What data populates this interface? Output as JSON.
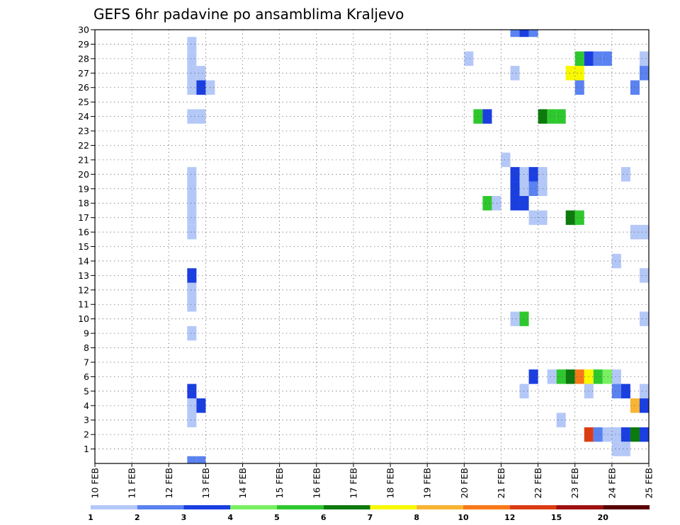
{
  "chart_data": {
    "type": "heatmap",
    "title": "GEFS 6hr padavine po ansamblima Kraljevo",
    "xlabel": "",
    "ylabel": "",
    "x_ticks": [
      "10 FEB",
      "11 FEB",
      "12 FEB",
      "13 FEB",
      "14 FEB",
      "15 FEB",
      "16 FEB",
      "17 FEB",
      "18 FEB",
      "19 FEB",
      "20 FEB",
      "21 FEB",
      "22 FEB",
      "23 FEB",
      "24 FEB",
      "25 FEB"
    ],
    "x_range_days": [
      10,
      25
    ],
    "x_step_hours": 6,
    "y_ticks": [
      "1",
      "2",
      "3",
      "4",
      "5",
      "6",
      "7",
      "8",
      "9",
      "10",
      "11",
      "12",
      "13",
      "14",
      "15",
      "16",
      "17",
      "18",
      "19",
      "20",
      "21",
      "22",
      "23",
      "24",
      "25",
      "26",
      "27",
      "28",
      "29",
      "30"
    ],
    "y_range": [
      0,
      30
    ],
    "grid": "dotted",
    "legend_position": "bottom",
    "legend": {
      "labels": [
        "1",
        "2",
        "3",
        "4",
        "5",
        "6",
        "7",
        "8",
        "10",
        "12",
        "15",
        "20"
      ],
      "colors": [
        "#b4c8f8",
        "#5a82f0",
        "#1a3ee0",
        "#78f060",
        "#2ec82e",
        "#0c7a0c",
        "#f8f800",
        "#f8b432",
        "#f87818",
        "#dc3c14",
        "#a01010",
        "#5a0000"
      ]
    },
    "cells": [
      {
        "day": 12.5,
        "m": 0,
        "v": 2
      },
      {
        "day": 12.75,
        "m": 0,
        "v": 2
      },
      {
        "day": 12.5,
        "m": 3,
        "v": 1
      },
      {
        "day": 12.5,
        "m": 4,
        "v": 1
      },
      {
        "day": 12.75,
        "m": 4,
        "v": 3
      },
      {
        "day": 12.5,
        "m": 5,
        "v": 3
      },
      {
        "day": 12.5,
        "m": 9,
        "v": 1
      },
      {
        "day": 12.5,
        "m": 11,
        "v": 1
      },
      {
        "day": 12.5,
        "m": 12,
        "v": 1
      },
      {
        "day": 12.5,
        "m": 13,
        "v": 3
      },
      {
        "day": 12.5,
        "m": 16,
        "v": 1
      },
      {
        "day": 12.5,
        "m": 17,
        "v": 1
      },
      {
        "day": 12.5,
        "m": 18,
        "v": 1
      },
      {
        "day": 12.5,
        "m": 19,
        "v": 1
      },
      {
        "day": 12.5,
        "m": 20,
        "v": 1
      },
      {
        "day": 12.5,
        "m": 24,
        "v": 1
      },
      {
        "day": 12.75,
        "m": 24,
        "v": 1
      },
      {
        "day": 12.5,
        "m": 26,
        "v": 1
      },
      {
        "day": 12.75,
        "m": 26,
        "v": 3
      },
      {
        "day": 13.0,
        "m": 26,
        "v": 1
      },
      {
        "day": 12.5,
        "m": 27,
        "v": 1
      },
      {
        "day": 12.75,
        "m": 27,
        "v": 1
      },
      {
        "day": 12.5,
        "m": 28,
        "v": 1
      },
      {
        "day": 12.5,
        "m": 29,
        "v": 1
      },
      {
        "day": 20.0,
        "m": 28,
        "v": 1
      },
      {
        "day": 20.25,
        "m": 24,
        "v": 5
      },
      {
        "day": 20.5,
        "m": 24,
        "v": 3
      },
      {
        "day": 20.5,
        "m": 18,
        "v": 5
      },
      {
        "day": 20.75,
        "m": 18,
        "v": 1
      },
      {
        "day": 21.0,
        "m": 21,
        "v": 1
      },
      {
        "day": 21.25,
        "m": 10,
        "v": 1
      },
      {
        "day": 21.5,
        "m": 10,
        "v": 5
      },
      {
        "day": 21.25,
        "m": 27,
        "v": 1
      },
      {
        "day": 21.25,
        "m": 30,
        "v": 2
      },
      {
        "day": 21.5,
        "m": 30,
        "v": 3
      },
      {
        "day": 21.75,
        "m": 30,
        "v": 2
      },
      {
        "day": 21.25,
        "m": 18,
        "v": 3
      },
      {
        "day": 21.5,
        "m": 18,
        "v": 3
      },
      {
        "day": 21.25,
        "m": 19,
        "v": 3
      },
      {
        "day": 21.5,
        "m": 19,
        "v": 1
      },
      {
        "day": 21.75,
        "m": 19,
        "v": 2
      },
      {
        "day": 22.0,
        "m": 19,
        "v": 1
      },
      {
        "day": 21.25,
        "m": 20,
        "v": 3
      },
      {
        "day": 21.5,
        "m": 20,
        "v": 1
      },
      {
        "day": 21.75,
        "m": 20,
        "v": 3
      },
      {
        "day": 22.0,
        "m": 20,
        "v": 1
      },
      {
        "day": 21.75,
        "m": 17,
        "v": 1
      },
      {
        "day": 22.0,
        "m": 17,
        "v": 1
      },
      {
        "day": 21.5,
        "m": 5,
        "v": 1
      },
      {
        "day": 21.75,
        "m": 6,
        "v": 3
      },
      {
        "day": 22.0,
        "m": 24,
        "v": 6
      },
      {
        "day": 22.25,
        "m": 24,
        "v": 5
      },
      {
        "day": 22.5,
        "m": 24,
        "v": 5
      },
      {
        "day": 22.5,
        "m": 3,
        "v": 1
      },
      {
        "day": 22.25,
        "m": 6,
        "v": 1
      },
      {
        "day": 22.5,
        "m": 6,
        "v": 5
      },
      {
        "day": 22.75,
        "m": 6,
        "v": 6
      },
      {
        "day": 23.0,
        "m": 6,
        "v": 10
      },
      {
        "day": 23.25,
        "m": 6,
        "v": 7
      },
      {
        "day": 23.5,
        "m": 6,
        "v": 5
      },
      {
        "day": 23.75,
        "m": 6,
        "v": 4
      },
      {
        "day": 24.0,
        "m": 6,
        "v": 1
      },
      {
        "day": 22.75,
        "m": 17,
        "v": 6
      },
      {
        "day": 23.0,
        "m": 17,
        "v": 5
      },
      {
        "day": 22.75,
        "m": 27,
        "v": 7
      },
      {
        "day": 23.0,
        "m": 27,
        "v": 7
      },
      {
        "day": 23.0,
        "m": 26,
        "v": 2
      },
      {
        "day": 23.0,
        "m": 28,
        "v": 5
      },
      {
        "day": 23.25,
        "m": 28,
        "v": 3
      },
      {
        "day": 23.5,
        "m": 28,
        "v": 2
      },
      {
        "day": 23.75,
        "m": 28,
        "v": 2
      },
      {
        "day": 23.25,
        "m": 5,
        "v": 1
      },
      {
        "day": 23.25,
        "m": 2,
        "v": 12
      },
      {
        "day": 23.5,
        "m": 2,
        "v": 2
      },
      {
        "day": 23.75,
        "m": 2,
        "v": 1
      },
      {
        "day": 24.0,
        "m": 2,
        "v": 1
      },
      {
        "day": 24.25,
        "m": 2,
        "v": 3
      },
      {
        "day": 24.5,
        "m": 2,
        "v": 6
      },
      {
        "day": 24.75,
        "m": 2,
        "v": 3
      },
      {
        "day": 24.0,
        "m": 1,
        "v": 1
      },
      {
        "day": 24.25,
        "m": 1,
        "v": 1
      },
      {
        "day": 24.0,
        "m": 5,
        "v": 2
      },
      {
        "day": 24.25,
        "m": 5,
        "v": 3
      },
      {
        "day": 24.0,
        "m": 14,
        "v": 1
      },
      {
        "day": 24.25,
        "m": 20,
        "v": 1
      },
      {
        "day": 24.5,
        "m": 4,
        "v": 8
      },
      {
        "day": 24.75,
        "m": 4,
        "v": 3
      },
      {
        "day": 25.0,
        "m": 4,
        "v": 2
      },
      {
        "day": 24.5,
        "m": 16,
        "v": 1
      },
      {
        "day": 24.75,
        "m": 16,
        "v": 1
      },
      {
        "day": 24.5,
        "m": 26,
        "v": 2
      },
      {
        "day": 24.75,
        "m": 27,
        "v": 2
      },
      {
        "day": 24.75,
        "m": 28,
        "v": 1
      },
      {
        "day": 25.0,
        "m": 28,
        "v": 2
      },
      {
        "day": 24.75,
        "m": 5,
        "v": 1
      },
      {
        "day": 25.0,
        "m": 5,
        "v": 3
      },
      {
        "day": 24.75,
        "m": 10,
        "v": 1
      },
      {
        "day": 24.75,
        "m": 13,
        "v": 1
      },
      {
        "day": 25.0,
        "m": 7,
        "v": 2
      },
      {
        "day": 25.0,
        "m": 12,
        "v": 5
      },
      {
        "day": 25.0,
        "m": 11,
        "v": 1
      }
    ]
  }
}
